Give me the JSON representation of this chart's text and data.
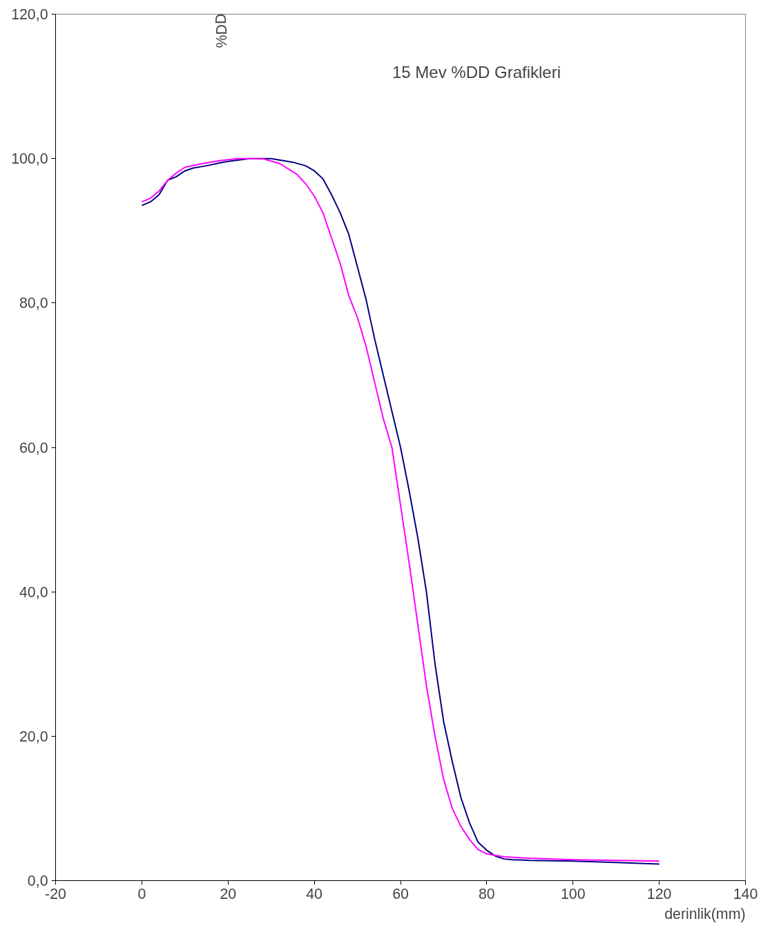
{
  "chart_data": {
    "type": "line",
    "title": "15 Mev %DD Grafikleri",
    "xlabel": "derinlik(mm)",
    "ylabel": "%DD",
    "xlim": [
      -20,
      140
    ],
    "xticks": [
      -20,
      0,
      20,
      40,
      60,
      80,
      100,
      120,
      140
    ],
    "ylim": [
      0,
      120
    ],
    "yticks": [
      {
        "value": 0,
        "label": "0,0"
      },
      {
        "value": 20,
        "label": "20,0"
      },
      {
        "value": 40,
        "label": "40,0"
      },
      {
        "value": 60,
        "label": "60,0"
      },
      {
        "value": 80,
        "label": "80,0"
      },
      {
        "value": 100,
        "label": "100,0"
      },
      {
        "value": 120,
        "label": "120,0"
      }
    ],
    "grid": false,
    "line_style": "solid",
    "series": [
      {
        "color": "#000080",
        "x": [
          0,
          2,
          4,
          6,
          8,
          10,
          12,
          15,
          18,
          20,
          25,
          30,
          35,
          38,
          40,
          42,
          44,
          46,
          48,
          50,
          52,
          54,
          56,
          58,
          60,
          62,
          64,
          66,
          68,
          70,
          72,
          74,
          76,
          78,
          80,
          82,
          84,
          86,
          90,
          100,
          110,
          120
        ],
        "values": [
          93.5,
          94,
          95,
          97,
          97.5,
          98.3,
          98.7,
          99,
          99.4,
          99.6,
          100,
          100,
          99.5,
          99,
          98.3,
          97.2,
          95,
          92.5,
          89.5,
          85,
          80.5,
          75,
          70,
          65,
          60,
          54,
          47.5,
          40,
          30,
          22,
          16.5,
          11.5,
          8,
          5.3,
          4.2,
          3.4,
          3,
          2.9,
          2.8,
          2.7,
          2.5,
          2.3
        ]
      },
      {
        "color": "#ff00ff",
        "x": [
          0,
          2,
          4,
          6,
          8,
          10,
          14,
          18,
          22,
          28,
          32,
          36,
          38,
          40,
          42,
          44,
          46,
          48,
          50,
          52,
          54,
          56,
          58,
          60,
          62,
          64,
          66,
          68,
          70,
          72,
          74,
          76,
          78,
          80,
          84,
          90,
          100,
          110,
          120
        ],
        "values": [
          94,
          94.5,
          95.5,
          97,
          98,
          98.8,
          99.3,
          99.7,
          100,
          100,
          99.3,
          97.8,
          96.5,
          94.8,
          92.5,
          89,
          85.5,
          81,
          78,
          74,
          69,
          64,
          60,
          52,
          44,
          35.5,
          27,
          20,
          14,
          10,
          7.5,
          5.7,
          4.3,
          3.7,
          3.3,
          3.1,
          2.9,
          2.8,
          2.7
        ]
      }
    ]
  }
}
